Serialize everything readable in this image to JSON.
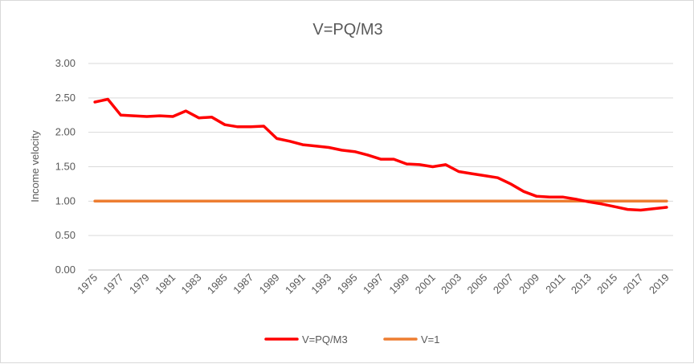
{
  "chart_data": {
    "type": "line",
    "title": "V=PQ/M3",
    "xlabel": "",
    "ylabel": "Income velocity",
    "ylim": [
      0,
      3
    ],
    "yticks": [
      "0.00",
      "0.50",
      "1.00",
      "1.50",
      "2.00",
      "2.50",
      "3.00"
    ],
    "x": [
      1975,
      1976,
      1977,
      1978,
      1979,
      1980,
      1981,
      1982,
      1983,
      1984,
      1985,
      1986,
      1987,
      1988,
      1989,
      1990,
      1991,
      1992,
      1993,
      1994,
      1995,
      1996,
      1997,
      1998,
      1999,
      2000,
      2001,
      2002,
      2003,
      2004,
      2005,
      2006,
      2007,
      2008,
      2009,
      2010,
      2011,
      2012,
      2013,
      2014,
      2015,
      2016,
      2017,
      2018,
      2019
    ],
    "xtick_labels": [
      "1975",
      "1977",
      "1979",
      "1981",
      "1983",
      "1985",
      "1987",
      "1989",
      "1991",
      "1993",
      "1995",
      "1997",
      "1999",
      "2001",
      "2003",
      "2005",
      "2007",
      "2009",
      "2011",
      "2013",
      "2015",
      "2017",
      "2019"
    ],
    "grid": true,
    "legend": "bottom",
    "series": [
      {
        "name": "V=PQ/M3",
        "color": "#ff0000",
        "values": [
          2.44,
          2.48,
          2.25,
          2.24,
          2.23,
          2.24,
          2.23,
          2.31,
          2.21,
          2.22,
          2.11,
          2.08,
          2.08,
          2.09,
          1.91,
          1.87,
          1.82,
          1.8,
          1.78,
          1.74,
          1.72,
          1.67,
          1.61,
          1.61,
          1.54,
          1.53,
          1.5,
          1.53,
          1.43,
          1.4,
          1.37,
          1.34,
          1.25,
          1.14,
          1.07,
          1.06,
          1.06,
          1.03,
          0.99,
          0.96,
          0.92,
          0.88,
          0.87,
          0.89,
          0.91
        ]
      },
      {
        "name": "V=1",
        "color": "#ed7d31",
        "values": [
          1,
          1,
          1,
          1,
          1,
          1,
          1,
          1,
          1,
          1,
          1,
          1,
          1,
          1,
          1,
          1,
          1,
          1,
          1,
          1,
          1,
          1,
          1,
          1,
          1,
          1,
          1,
          1,
          1,
          1,
          1,
          1,
          1,
          1,
          1,
          1,
          1,
          1,
          1,
          1,
          1,
          1,
          1,
          1,
          1
        ]
      }
    ]
  }
}
